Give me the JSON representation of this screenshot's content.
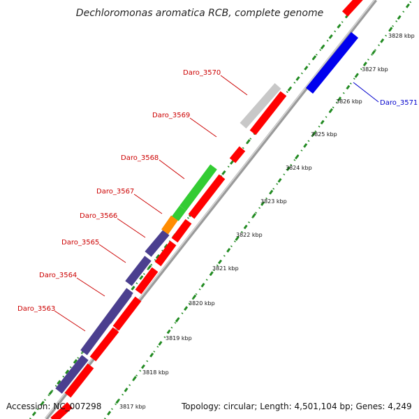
{
  "title": "Dechloromonas aromatica RCB, complete genome",
  "footer": {
    "accession": "Accession: NC_007298",
    "topology": "Topology: circular; Length: 4,501,104 bp; Genes: 4,249"
  },
  "colors": {
    "background": "#ffffff",
    "backbone": "#8a8a8a",
    "tick": "#228b22",
    "gene_red": "#ff0000",
    "gene_purple": "#4b3f8f",
    "gene_green": "#33cc33",
    "gene_orange": "#ff8c00",
    "gene_gray": "#c8c8c8",
    "gene_blue": "#0000ee",
    "label_red": "#cc0000",
    "label_blue": "#0000cc"
  },
  "scale_ticks": [
    {
      "kbp": 3817,
      "label": "3817 kbp"
    },
    {
      "kbp": 3818,
      "label": "3818 kbp"
    },
    {
      "kbp": 3819,
      "label": "3819 kbp"
    },
    {
      "kbp": 3820,
      "label": "3820 kbp"
    },
    {
      "kbp": 3821,
      "label": "3821 kbp"
    },
    {
      "kbp": 3822,
      "label": "3822 kbp"
    },
    {
      "kbp": 3823,
      "label": "3823 kbp"
    },
    {
      "kbp": 3824,
      "label": "3824 kbp"
    },
    {
      "kbp": 3825,
      "label": "3825 kbp"
    },
    {
      "kbp": 3826,
      "label": "3826 kbp"
    },
    {
      "kbp": 3827,
      "label": "3827 kbp"
    },
    {
      "kbp": 3828,
      "label": "3828 kbp"
    }
  ],
  "gene_labels": [
    {
      "name": "Daro_3563",
      "color": "red"
    },
    {
      "name": "Daro_3564",
      "color": "red"
    },
    {
      "name": "Daro_3565",
      "color": "red"
    },
    {
      "name": "Daro_3566",
      "color": "red"
    },
    {
      "name": "Daro_3567",
      "color": "red"
    },
    {
      "name": "Daro_3568",
      "color": "red"
    },
    {
      "name": "Daro_3569",
      "color": "red"
    },
    {
      "name": "Daro_3570",
      "color": "red"
    },
    {
      "name": "Daro_3571",
      "color": "blue"
    }
  ]
}
